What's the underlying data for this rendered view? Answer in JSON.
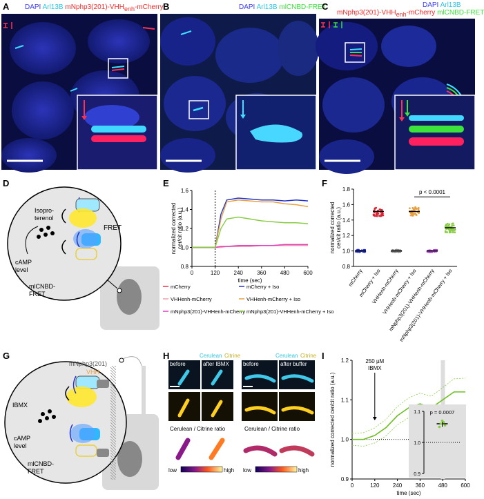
{
  "panels": {
    "A": {
      "label": "A",
      "cap_dapi": "DAPI",
      "cap_arl": "Arl13B",
      "cap_main": "mNphp3(201)-VHH",
      "cap_sub": "enh",
      "cap_tail": "-mCherry"
    },
    "B": {
      "label": "B",
      "cap_dapi": "DAPI",
      "cap_arl": "Arl13B",
      "cap_main": "mlCNBD-FRET"
    },
    "C": {
      "label": "C",
      "cap_dapi": "DAPI",
      "cap_arl": "Arl13B",
      "cap_main": "mNphp3(201)-VHH",
      "cap_sub": "enh",
      "cap_tail": "-mCherry",
      "cap_green": "mlCNBD-FRET"
    },
    "D": {
      "label": "D",
      "t1": "Isopro-",
      "t2": "terenol",
      "fret": "FRET",
      "camp1": "cAMP",
      "camp2": "level",
      "ml1": "mlCNBD-",
      "ml2": "FRET"
    },
    "E": {
      "label": "E"
    },
    "F": {
      "label": "F",
      "pval": "p < 0.0001"
    },
    "G": {
      "label": "G",
      "nphp": "mNphp3(201)",
      "vhh": "VHH",
      "ibmx": "IBMX",
      "camp1": "cAMP",
      "camp2": "level",
      "ml1": "mlCNBD-",
      "ml2": "FRET"
    },
    "H": {
      "label": "H",
      "cerulean": "Cerulean",
      "citrine": "Citrine",
      "before": "before",
      "after_ibmx": "after IBMX",
      "after_buffer": "after buffer",
      "ratio": "Cerulean / Citrine ratio",
      "low": "low",
      "high": "high"
    },
    "I": {
      "label": "I",
      "ibmx1": "250 µM",
      "ibmx2": "IBMX",
      "pval": "p = 0.0007"
    }
  },
  "legendE": [
    {
      "name": "mCherry",
      "color": "#e8334a"
    },
    {
      "name": "mCherry + Iso",
      "color": "#2233cc"
    },
    {
      "name": "VHHenh-mCherry",
      "color": "#f0a0b0"
    },
    {
      "name": "VHHenh-mCherry + Iso",
      "color": "#e8a040"
    },
    {
      "name": "mNphp3(201)-VHHenh-mCherry",
      "color": "#e040c0"
    },
    {
      "name": "mNphp3(201)-VHHenh-mCherry + Iso",
      "color": "#88cc44"
    }
  ],
  "chart_data": [
    {
      "type": "line",
      "panel": "E",
      "xlabel": "time (sec)",
      "ylabel": "normalized corrected cer/cit ratio (a.u.)",
      "xlim": [
        0,
        600
      ],
      "ylim": [
        0.8,
        1.6
      ],
      "xticks": [
        0,
        120,
        240,
        360,
        480,
        600
      ],
      "yticks": [
        0.8,
        1.0,
        1.2,
        1.4,
        1.6
      ],
      "annotation": "dotted vertical line at 120 sec",
      "x": [
        0,
        60,
        120,
        150,
        180,
        240,
        300,
        360,
        420,
        480,
        540,
        600
      ],
      "series": [
        {
          "name": "mCherry",
          "values": [
            1.0,
            1.0,
            1.0,
            1.01,
            1.01,
            1.01,
            1.02,
            1.02,
            1.02,
            1.03,
            1.03,
            1.03
          ]
        },
        {
          "name": "VHHenh-mCherry",
          "values": [
            1.0,
            1.0,
            1.0,
            1.0,
            1.01,
            1.01,
            1.01,
            1.02,
            1.02,
            1.02,
            1.02,
            1.02
          ]
        },
        {
          "name": "mNphp3(201)-VHHenh-mCherry",
          "values": [
            1.0,
            1.0,
            1.0,
            1.01,
            1.01,
            1.02,
            1.02,
            1.02,
            1.02,
            1.03,
            1.03,
            1.03
          ]
        },
        {
          "name": "mCherry + Iso",
          "values": [
            1.0,
            1.0,
            1.0,
            1.35,
            1.5,
            1.52,
            1.51,
            1.5,
            1.5,
            1.49,
            1.5,
            1.49
          ]
        },
        {
          "name": "VHHenh-mCherry + Iso",
          "values": [
            1.0,
            1.0,
            1.0,
            1.3,
            1.48,
            1.5,
            1.49,
            1.48,
            1.48,
            1.46,
            1.45,
            1.43
          ]
        },
        {
          "name": "mNphp3(201)-VHHenh-mCherry + Iso",
          "values": [
            1.0,
            1.0,
            1.0,
            1.2,
            1.3,
            1.32,
            1.3,
            1.28,
            1.27,
            1.26,
            1.26,
            1.25
          ]
        }
      ]
    },
    {
      "type": "scatter",
      "panel": "F",
      "ylabel": "normalized corrected cer/cit ratio (a.u.)",
      "ylim": [
        0.8,
        1.8
      ],
      "yticks": [
        0.8,
        1.0,
        1.2,
        1.4,
        1.6,
        1.8
      ],
      "categories": [
        "mCherry",
        "mCherry + Iso",
        "VHHenh-mCherry",
        "VHHenh-mCherry + Iso",
        "mNphp3(201)-VHHenh-mCherry",
        "mNphp3(201)-VHHenh-mCherry + Iso"
      ],
      "means": [
        1.0,
        1.51,
        1.0,
        1.51,
        1.0,
        1.3
      ],
      "colors": [
        "#2233cc",
        "#dd2233",
        "#888888",
        "#e8a040",
        "#aa44cc",
        "#88cc44"
      ],
      "comparison": {
        "between": [
          "VHHenh-mCherry + Iso",
          "mNphp3(201)-VHHenh-mCherry + Iso"
        ],
        "label": "p < 0.0001"
      }
    },
    {
      "type": "line",
      "panel": "I",
      "xlabel": "time (sec)",
      "ylabel": "normalized corrected cer/cit ratio (a.u.)",
      "xlim": [
        0,
        600
      ],
      "ylim": [
        0.9,
        1.2
      ],
      "xticks": [
        0,
        120,
        240,
        360,
        480,
        600
      ],
      "yticks": [
        0.9,
        1.0,
        1.1,
        1.2
      ],
      "x": [
        0,
        60,
        120,
        180,
        240,
        300,
        360,
        420,
        480,
        540,
        600
      ],
      "values": [
        1.0,
        1.0,
        1.01,
        1.03,
        1.06,
        1.08,
        1.09,
        1.08,
        1.1,
        1.12,
        1.12
      ],
      "inset": {
        "ylim": [
          0.9,
          1.1
        ],
        "yticks": [
          0.9,
          1.0,
          1.1
        ],
        "mean": 1.06,
        "pval": "p = 0.0007"
      }
    }
  ]
}
